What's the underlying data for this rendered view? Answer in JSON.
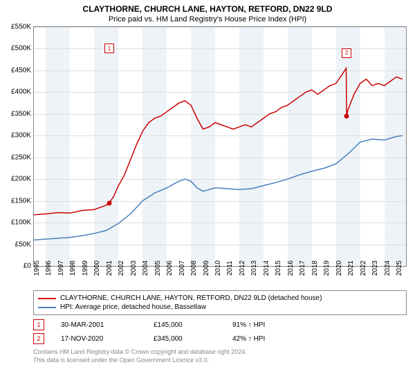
{
  "title": "CLAYTHORNE, CHURCH LANE, HAYTON, RETFORD, DN22 9LD",
  "subtitle": "Price paid vs. HM Land Registry's House Price Index (HPI)",
  "chart": {
    "type": "line",
    "background_color": "#ffffff",
    "grid_color": "#dddddd",
    "band_color": "#eef3f8",
    "xlim": [
      1995,
      2025.8
    ],
    "ylim": [
      0,
      550000
    ],
    "ytick_step": 50000,
    "yticks": [
      "£0",
      "£50K",
      "£100K",
      "£150K",
      "£200K",
      "£250K",
      "£300K",
      "£350K",
      "£400K",
      "£450K",
      "£500K",
      "£550K"
    ],
    "xticks": [
      1995,
      1996,
      1997,
      1998,
      1999,
      2000,
      2001,
      2002,
      2003,
      2004,
      2005,
      2006,
      2007,
      2008,
      2009,
      2010,
      2011,
      2012,
      2013,
      2014,
      2015,
      2016,
      2017,
      2018,
      2019,
      2020,
      2021,
      2022,
      2023,
      2024,
      2025
    ],
    "bands": [
      [
        1996,
        1998
      ],
      [
        2000,
        2002
      ],
      [
        2004,
        2006
      ],
      [
        2008,
        2010
      ],
      [
        2012,
        2014
      ],
      [
        2016,
        2018
      ],
      [
        2020,
        2022
      ],
      [
        2024,
        2025.8
      ]
    ],
    "series": [
      {
        "name": "CLAYTHORNE, CHURCH LANE, HAYTON, RETFORD, DN22 9LD (detached house)",
        "color": "#cc0000",
        "line_width": 1.5,
        "points": [
          [
            1995,
            118000
          ],
          [
            1996,
            120000
          ],
          [
            1997,
            123000
          ],
          [
            1998,
            122000
          ],
          [
            1999,
            128000
          ],
          [
            2000,
            130000
          ],
          [
            2000.5,
            135000
          ],
          [
            2001,
            140000
          ],
          [
            2001.24,
            145000
          ],
          [
            2001.6,
            160000
          ],
          [
            2002,
            185000
          ],
          [
            2002.5,
            210000
          ],
          [
            2003,
            245000
          ],
          [
            2003.5,
            280000
          ],
          [
            2004,
            310000
          ],
          [
            2004.5,
            330000
          ],
          [
            2005,
            340000
          ],
          [
            2005.5,
            345000
          ],
          [
            2006,
            355000
          ],
          [
            2006.5,
            365000
          ],
          [
            2007,
            375000
          ],
          [
            2007.5,
            380000
          ],
          [
            2008,
            370000
          ],
          [
            2008.5,
            340000
          ],
          [
            2009,
            315000
          ],
          [
            2009.5,
            320000
          ],
          [
            2010,
            330000
          ],
          [
            2010.5,
            325000
          ],
          [
            2011,
            320000
          ],
          [
            2011.5,
            315000
          ],
          [
            2012,
            320000
          ],
          [
            2012.5,
            325000
          ],
          [
            2013,
            320000
          ],
          [
            2013.5,
            330000
          ],
          [
            2014,
            340000
          ],
          [
            2014.5,
            350000
          ],
          [
            2015,
            355000
          ],
          [
            2015.5,
            365000
          ],
          [
            2016,
            370000
          ],
          [
            2016.5,
            380000
          ],
          [
            2017,
            390000
          ],
          [
            2017.5,
            400000
          ],
          [
            2018,
            405000
          ],
          [
            2018.5,
            395000
          ],
          [
            2019,
            405000
          ],
          [
            2019.5,
            415000
          ],
          [
            2020,
            420000
          ],
          [
            2020.5,
            440000
          ],
          [
            2020.85,
            455000
          ],
          [
            2020.88,
            345000
          ],
          [
            2021,
            360000
          ],
          [
            2021.5,
            395000
          ],
          [
            2022,
            420000
          ],
          [
            2022.5,
            430000
          ],
          [
            2023,
            415000
          ],
          [
            2023.5,
            420000
          ],
          [
            2024,
            415000
          ],
          [
            2024.5,
            425000
          ],
          [
            2025,
            435000
          ],
          [
            2025.5,
            430000
          ]
        ]
      },
      {
        "name": "HPI: Average price, detached house, Bassetlaw",
        "color": "#4a7ebb",
        "line_width": 1.5,
        "points": [
          [
            1995,
            60000
          ],
          [
            1996,
            62000
          ],
          [
            1997,
            64000
          ],
          [
            1998,
            66000
          ],
          [
            1999,
            70000
          ],
          [
            2000,
            75000
          ],
          [
            2001,
            82000
          ],
          [
            2002,
            98000
          ],
          [
            2003,
            120000
          ],
          [
            2004,
            150000
          ],
          [
            2005,
            168000
          ],
          [
            2006,
            180000
          ],
          [
            2007,
            195000
          ],
          [
            2007.5,
            200000
          ],
          [
            2008,
            195000
          ],
          [
            2008.5,
            180000
          ],
          [
            2009,
            172000
          ],
          [
            2010,
            180000
          ],
          [
            2011,
            178000
          ],
          [
            2012,
            176000
          ],
          [
            2013,
            178000
          ],
          [
            2014,
            185000
          ],
          [
            2015,
            192000
          ],
          [
            2016,
            200000
          ],
          [
            2017,
            210000
          ],
          [
            2018,
            218000
          ],
          [
            2019,
            225000
          ],
          [
            2020,
            235000
          ],
          [
            2021,
            258000
          ],
          [
            2022,
            285000
          ],
          [
            2023,
            292000
          ],
          [
            2024,
            290000
          ],
          [
            2025,
            298000
          ],
          [
            2025.5,
            300000
          ]
        ]
      }
    ],
    "markers": [
      {
        "id": "1",
        "x": 2001.24,
        "y": 145000,
        "label_y": 500000,
        "color": "#cc0000"
      },
      {
        "id": "2",
        "x": 2020.88,
        "y": 345000,
        "label_y": 490000,
        "color": "#cc0000"
      }
    ]
  },
  "legend": {
    "items": [
      {
        "color": "#cc0000",
        "label": "CLAYTHORNE, CHURCH LANE, HAYTON, RETFORD, DN22 9LD (detached house)"
      },
      {
        "color": "#4a7ebb",
        "label": "HPI: Average price, detached house, Bassetlaw"
      }
    ]
  },
  "marker_rows": [
    {
      "id": "1",
      "date": "30-MAR-2001",
      "price": "£145,000",
      "pct": "91% ↑ HPI"
    },
    {
      "id": "2",
      "date": "17-NOV-2020",
      "price": "£345,000",
      "pct": "42% ↑ HPI"
    }
  ],
  "footer_line1": "Contains HM Land Registry data © Crown copyright and database right 2024.",
  "footer_line2": "This data is licensed under the Open Government Licence v3.0."
}
